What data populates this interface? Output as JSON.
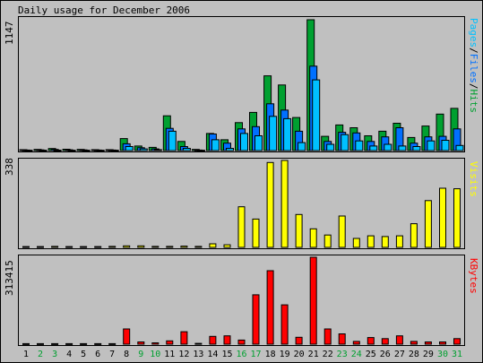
{
  "chart_data": {
    "type": "bar",
    "title": "Daily usage for December 2006",
    "categories": [
      "1",
      "2",
      "3",
      "4",
      "5",
      "6",
      "7",
      "8",
      "9",
      "10",
      "11",
      "12",
      "13",
      "14",
      "15",
      "16",
      "17",
      "18",
      "19",
      "20",
      "21",
      "22",
      "23",
      "24",
      "25",
      "26",
      "27",
      "28",
      "29",
      "30",
      "31"
    ],
    "weekend_days": [
      "2",
      "3",
      "9",
      "10",
      "16",
      "17",
      "23",
      "24",
      "30",
      "31"
    ],
    "panels": [
      {
        "name": "hits_files_pages",
        "axis_max_label": "1147",
        "ylim": [
          0,
          1147
        ],
        "legend": [
          "Pages",
          "/",
          "Files",
          "/",
          "Hits"
        ],
        "series": [
          {
            "name": "Hits",
            "color": "#00a030",
            "values": [
              8,
              10,
              18,
              12,
              10,
              8,
              8,
              105,
              40,
              28,
              305,
              80,
              10,
              150,
              95,
              245,
              335,
              655,
              575,
              290,
              1147,
              125,
              225,
              200,
              130,
              170,
              240,
              115,
              215,
              320,
              370
            ]
          },
          {
            "name": "Files",
            "color": "#0070ff",
            "values": [
              5,
              6,
              10,
              7,
              6,
              5,
              5,
              60,
              25,
              15,
              195,
              35,
              5,
              145,
              65,
              190,
              210,
              410,
              355,
              170,
              740,
              80,
              160,
              155,
              80,
              120,
              200,
              65,
              120,
              125,
              190
            ]
          },
          {
            "name": "Pages",
            "color": "#00c0ff",
            "values": [
              3,
              3,
              4,
              3,
              3,
              3,
              3,
              35,
              15,
              8,
              170,
              20,
              3,
              95,
              20,
              150,
              130,
              300,
              280,
              70,
              620,
              55,
              140,
              85,
              40,
              55,
              40,
              35,
              85,
              90,
              45
            ]
          }
        ]
      },
      {
        "name": "visits",
        "axis_max_label": "338",
        "ylim": [
          0,
          338
        ],
        "legend": [
          "Visits"
        ],
        "series": [
          {
            "name": "Visits",
            "color": "#ffff00",
            "values": [
              3,
              3,
              4,
              3,
              3,
              3,
              4,
              6,
              6,
              4,
              4,
              5,
              4,
              14,
              10,
              158,
              110,
              330,
              338,
              128,
              72,
              48,
              122,
              35,
              45,
              42,
              45,
              92,
              182,
              230,
              228
            ]
          }
        ]
      },
      {
        "name": "kbytes",
        "axis_max_label": "313415",
        "ylim": [
          0,
          313415
        ],
        "legend": [
          "KBytes"
        ],
        "series": [
          {
            "name": "KBytes",
            "color": "#ff0000",
            "values": [
              2000,
              2000,
              2000,
              2000,
              2000,
              2000,
              2000,
              55000,
              8000,
              5000,
              12000,
              45000,
              3000,
              28000,
              30000,
              15000,
              178000,
              265000,
              142000,
              25000,
              313415,
              55000,
              37000,
              10000,
              24000,
              20000,
              30000,
              10000,
              8000,
              8000,
              20000
            ]
          }
        ]
      }
    ]
  }
}
